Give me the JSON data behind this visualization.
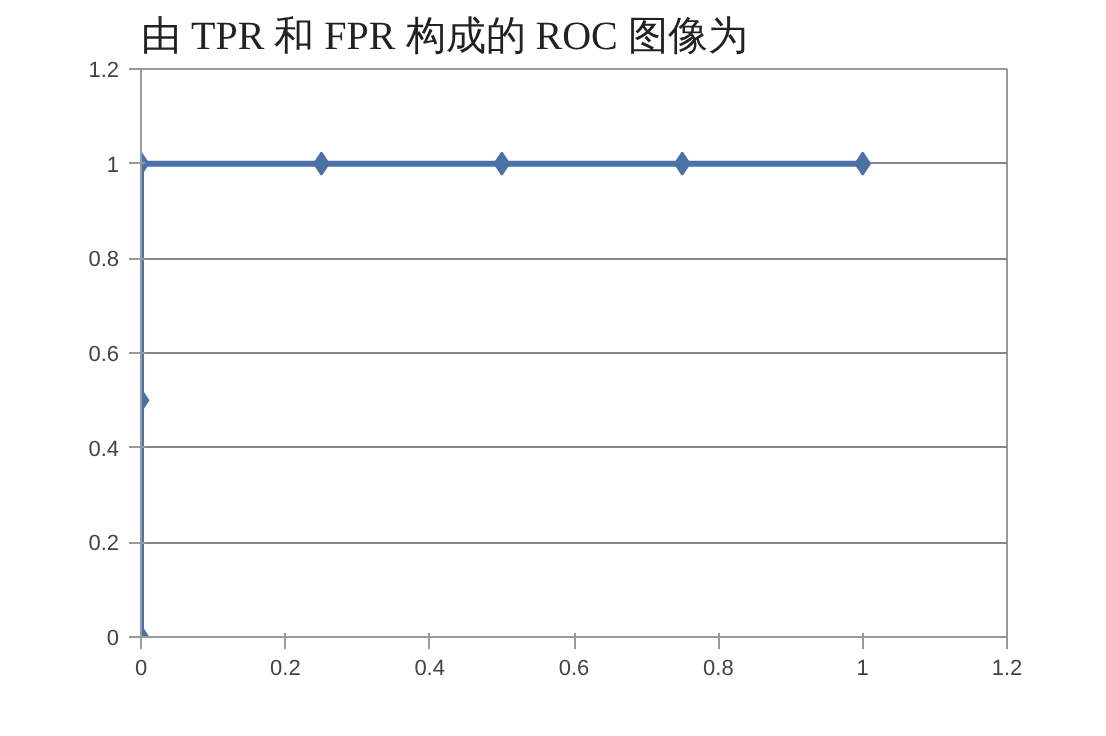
{
  "chart_data": {
    "type": "line",
    "title": "由 TPR 和 FPR 构成的 ROC 图像为",
    "x": [
      0,
      0,
      0,
      0.25,
      0.5,
      0.75,
      1
    ],
    "series": [
      {
        "color": "#4a72a8",
        "values": [
          0,
          0.5,
          1,
          1,
          1,
          1,
          1
        ]
      }
    ],
    "xlim": [
      0,
      1.2
    ],
    "xticks": [
      0,
      0.2,
      0.4,
      0.6,
      0.8,
      1,
      1.2
    ],
    "ylim": [
      0,
      1.2
    ],
    "yticks": [
      0,
      0.2,
      0.4,
      0.6,
      0.8,
      1,
      1.2
    ],
    "grid": "y",
    "marker": "diamond",
    "line_style": "solid"
  }
}
